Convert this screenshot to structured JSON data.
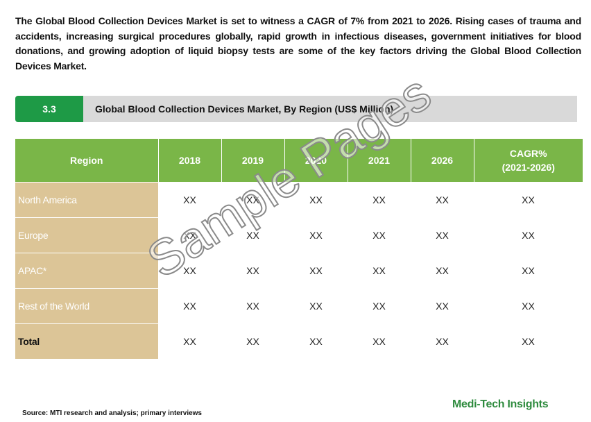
{
  "intro": "The Global Blood Collection Devices Market is set to witness a CAGR of 7% from 2021 to 2026. Rising cases of trauma and accidents, increasing surgical procedures globally, rapid growth in infectious diseases, government initiatives for blood donations, and growing adoption of liquid biopsy tests are some of the key factors driving the Global Blood Collection Devices Market.",
  "section": {
    "number": "3.3",
    "title": "Global Blood Collection Devices Market, By Region (US$ Million)"
  },
  "table": {
    "headers": [
      "Region",
      "2018",
      "2019",
      "2020",
      "2021",
      "2026",
      "CAGR%\n(2021-2026)"
    ],
    "rows": [
      [
        "North America",
        "XX",
        "XX",
        "XX",
        "XX",
        "XX",
        "XX"
      ],
      [
        "Europe",
        "XX",
        "XX",
        "XX",
        "XX",
        "XX",
        "XX"
      ],
      [
        "APAC*",
        "XX",
        "XX",
        "XX",
        "XX",
        "XX",
        "XX"
      ],
      [
        "Rest of the World",
        "XX",
        "XX",
        "XX",
        "XX",
        "XX",
        "XX"
      ],
      [
        "Total",
        "XX",
        "XX",
        "XX",
        "XX",
        "XX",
        "XX"
      ]
    ]
  },
  "watermark": "Sample Pages",
  "source": "Source: MTI research and analysis; primary interviews",
  "brand": "Medi-Tech Insights"
}
